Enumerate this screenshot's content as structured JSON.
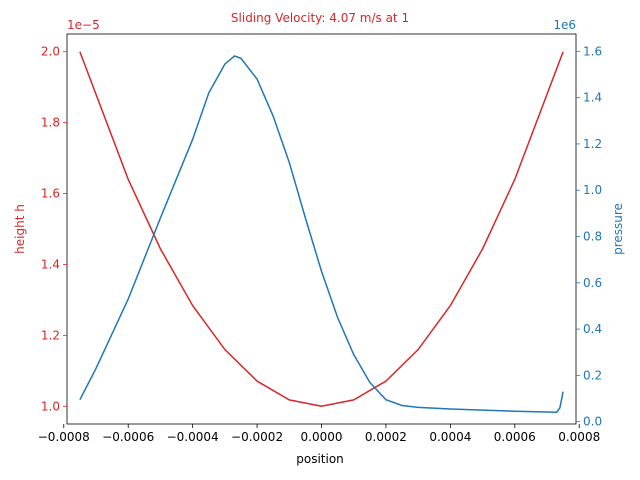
{
  "chart_data": {
    "type": "line",
    "title": "Sliding Velocity: 4.07 m/s at 1",
    "xlabel": "position",
    "xlim": [
      -0.00079,
      0.00079
    ],
    "x_ticks": [
      -0.0008,
      -0.0006,
      -0.0004,
      -0.0002,
      0.0,
      0.0002,
      0.0004,
      0.0006,
      0.0008
    ],
    "x_tick_labels": [
      "−0.0008",
      "−0.0006",
      "−0.0004",
      "−0.0002",
      "0.0000",
      "0.0002",
      "0.0004",
      "0.0006",
      "0.0008"
    ],
    "left_axis": {
      "label": "height h",
      "color": "#d62728",
      "offset_text": "1e−5",
      "ylim": [
        9.5e-06,
        2.05e-05
      ],
      "ticks": [
        1e-05,
        1.2e-05,
        1.4e-05,
        1.6e-05,
        1.8e-05,
        2e-05
      ],
      "tick_labels": [
        "1.0",
        "1.2",
        "1.4",
        "1.6",
        "1.8",
        "2.0"
      ]
    },
    "right_axis": {
      "label": "pressure",
      "color": "#1f77b4",
      "offset_text": "1e6",
      "ylim": [
        -10000,
        1675000
      ],
      "ticks": [
        0,
        200000,
        400000,
        600000,
        800000,
        1000000,
        1200000,
        1400000,
        1600000
      ],
      "tick_labels": [
        "0.0",
        "0.2",
        "0.4",
        "0.6",
        "0.8",
        "1.0",
        "1.2",
        "1.4",
        "1.6"
      ]
    },
    "series": [
      {
        "axis": "left",
        "color": "#d62728",
        "x": [
          -0.00075,
          -0.0006,
          -0.0005,
          -0.0004,
          -0.0003,
          -0.0002,
          -0.0001,
          0.0,
          0.0001,
          0.0002,
          0.0003,
          0.0004,
          0.0005,
          0.0006,
          0.00075
        ],
        "y": [
          2e-05,
          1.64e-05,
          1.444e-05,
          1.284e-05,
          1.16e-05,
          1.071e-05,
          1.018e-05,
          1e-05,
          1.018e-05,
          1.071e-05,
          1.16e-05,
          1.284e-05,
          1.444e-05,
          1.64e-05,
          2e-05
        ]
      },
      {
        "axis": "right",
        "color": "#1f77b4",
        "x": [
          -0.00075,
          -0.0007,
          -0.0006,
          -0.0005,
          -0.0004,
          -0.00035,
          -0.0003,
          -0.00027,
          -0.00025,
          -0.0002,
          -0.00015,
          -0.0001,
          -5e-05,
          0.0,
          5e-05,
          0.0001,
          0.00015,
          0.0002,
          0.00025,
          0.0003,
          0.0004,
          0.0005,
          0.0006,
          0.0007,
          0.00073,
          0.00074,
          0.00075
        ],
        "y": [
          95000,
          230000,
          530000,
          880000,
          1220000,
          1420000,
          1545000,
          1580000,
          1570000,
          1480000,
          1320000,
          1120000,
          880000,
          650000,
          450000,
          290000,
          170000,
          95000,
          70000,
          62000,
          55000,
          50000,
          45000,
          42000,
          41000,
          60000,
          130000
        ]
      }
    ]
  }
}
